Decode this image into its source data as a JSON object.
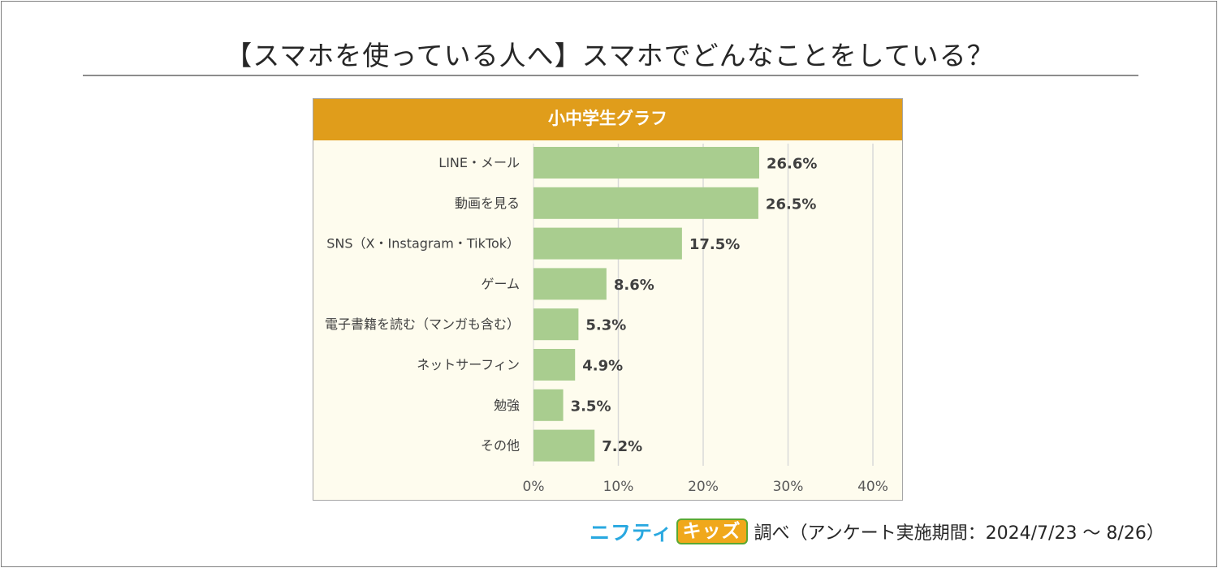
{
  "title": "【スマホを使っている人へ】スマホでどんなことをしている？",
  "colors": {
    "header_bg": "#e09d1b",
    "bar": "#a9cd8f",
    "plot_bg": "#fefcee",
    "gridline": "#d9d9d9"
  },
  "chart_data": {
    "type": "bar",
    "orientation": "horizontal",
    "title": "小中学生グラフ",
    "categories": [
      "LINE・メール",
      "動画を見る",
      "SNS（X・Instagram・TikTok）",
      "ゲーム",
      "電子書籍を読む（マンガも含む）",
      "ネットサーフィン",
      "勉強",
      "その他"
    ],
    "values": [
      26.6,
      26.5,
      17.5,
      8.6,
      5.3,
      4.9,
      3.5,
      7.2
    ],
    "value_labels": [
      "26.6%",
      "26.5%",
      "17.5%",
      "8.6%",
      "5.3%",
      "4.9%",
      "3.5%",
      "7.2%"
    ],
    "xlim": [
      0,
      40
    ],
    "x_ticks": [
      0,
      10,
      20,
      30,
      40
    ],
    "x_tick_labels": [
      "0%",
      "10%",
      "20%",
      "30%",
      "40%"
    ],
    "grid": true,
    "xlabel": "",
    "ylabel": ""
  },
  "footer": {
    "logo_nifty": "ニフティ",
    "logo_kids": "キッズ",
    "note": "調べ（アンケート実施期間：2024/7/23 ～ 8/26）"
  }
}
